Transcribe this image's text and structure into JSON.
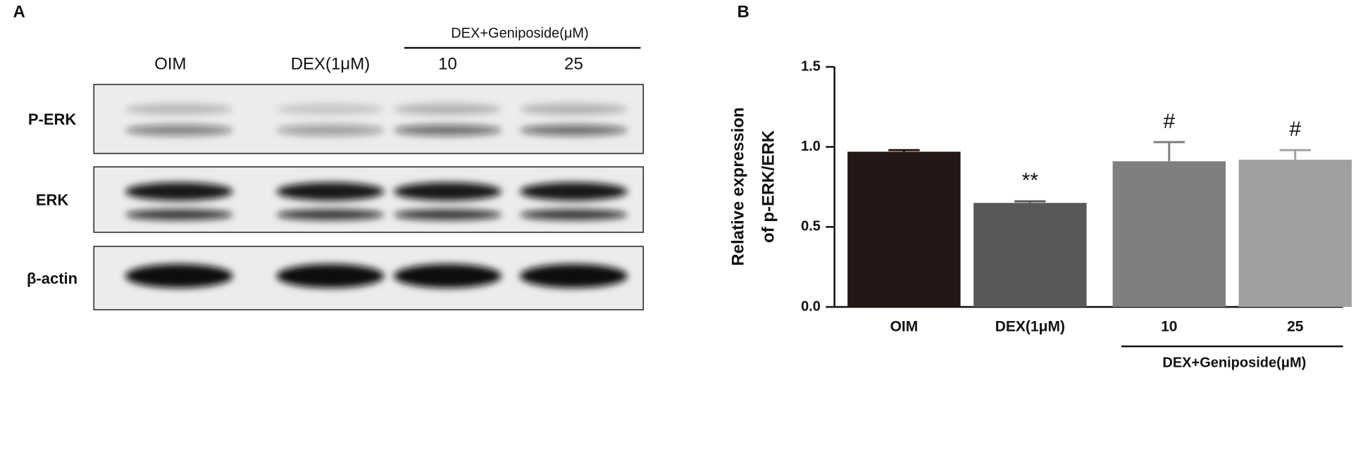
{
  "panel_a": {
    "label": "A",
    "group_label": "DEX+Geniposide(μM)",
    "lanes": [
      "OIM",
      "DEX(1μM)",
      "10",
      "25"
    ],
    "rows": [
      "P-ERK",
      "ERK",
      "β-actin"
    ]
  },
  "chart_data": {
    "type": "bar",
    "panel_label": "B",
    "ylabel": [
      "Relative expression",
      "of p-ERK/ERK"
    ],
    "categories": [
      "OIM",
      "DEX(1μM)",
      "10",
      "25"
    ],
    "group_label": "DEX+Geniposide(μM)",
    "values": [
      0.97,
      0.65,
      0.91,
      0.92
    ],
    "errors": [
      0.01,
      0.01,
      0.12,
      0.06
    ],
    "annotations": [
      null,
      "**",
      "#",
      "#"
    ],
    "colors": [
      "#231815",
      "#595757",
      "#7f7f7f",
      "#a0a0a0"
    ],
    "ylim": [
      0,
      1.5
    ],
    "yticks": [
      {
        "value": 0,
        "label": "0.0"
      },
      {
        "value": 0.5,
        "label": "0.5"
      },
      {
        "value": 1,
        "label": "1.0"
      },
      {
        "value": 1.5,
        "label": "1.5"
      }
    ]
  }
}
